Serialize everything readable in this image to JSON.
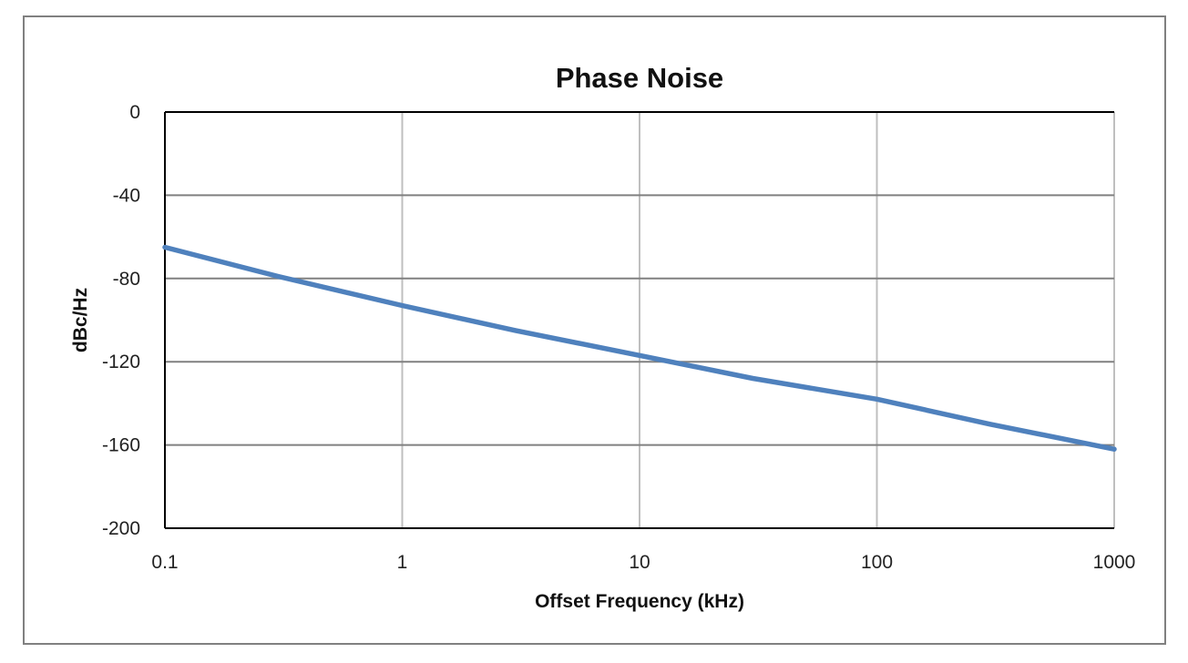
{
  "chart_data": {
    "type": "line",
    "title": "Phase Noise",
    "xlabel": "Offset Frequency (kHz)",
    "ylabel": "dBc/Hz",
    "x_scale": "log",
    "xlim": [
      0.1,
      1000
    ],
    "ylim": [
      -200,
      0
    ],
    "x_ticks": [
      0.1,
      1,
      10,
      100,
      1000
    ],
    "x_tick_labels": [
      "0.1",
      "1",
      "10",
      "100",
      "1000"
    ],
    "y_ticks": [
      0,
      -40,
      -80,
      -120,
      -160,
      -200
    ],
    "y_tick_labels": [
      "0",
      "-40",
      "-80",
      "-120",
      "-160",
      "-200"
    ],
    "grid": true,
    "legend": "none",
    "colors": {
      "series": "#4F81BD",
      "horizontal_grid": "#808080",
      "vertical_grid": "#BFBFBF",
      "frame": "#808080"
    },
    "series": [
      {
        "x": [
          0.1,
          0.3,
          1,
          3,
          10,
          30,
          100,
          300,
          1000
        ],
        "y": [
          -65,
          -79,
          -93,
          -105,
          -117,
          -128,
          -138,
          -150,
          -162
        ]
      }
    ]
  }
}
